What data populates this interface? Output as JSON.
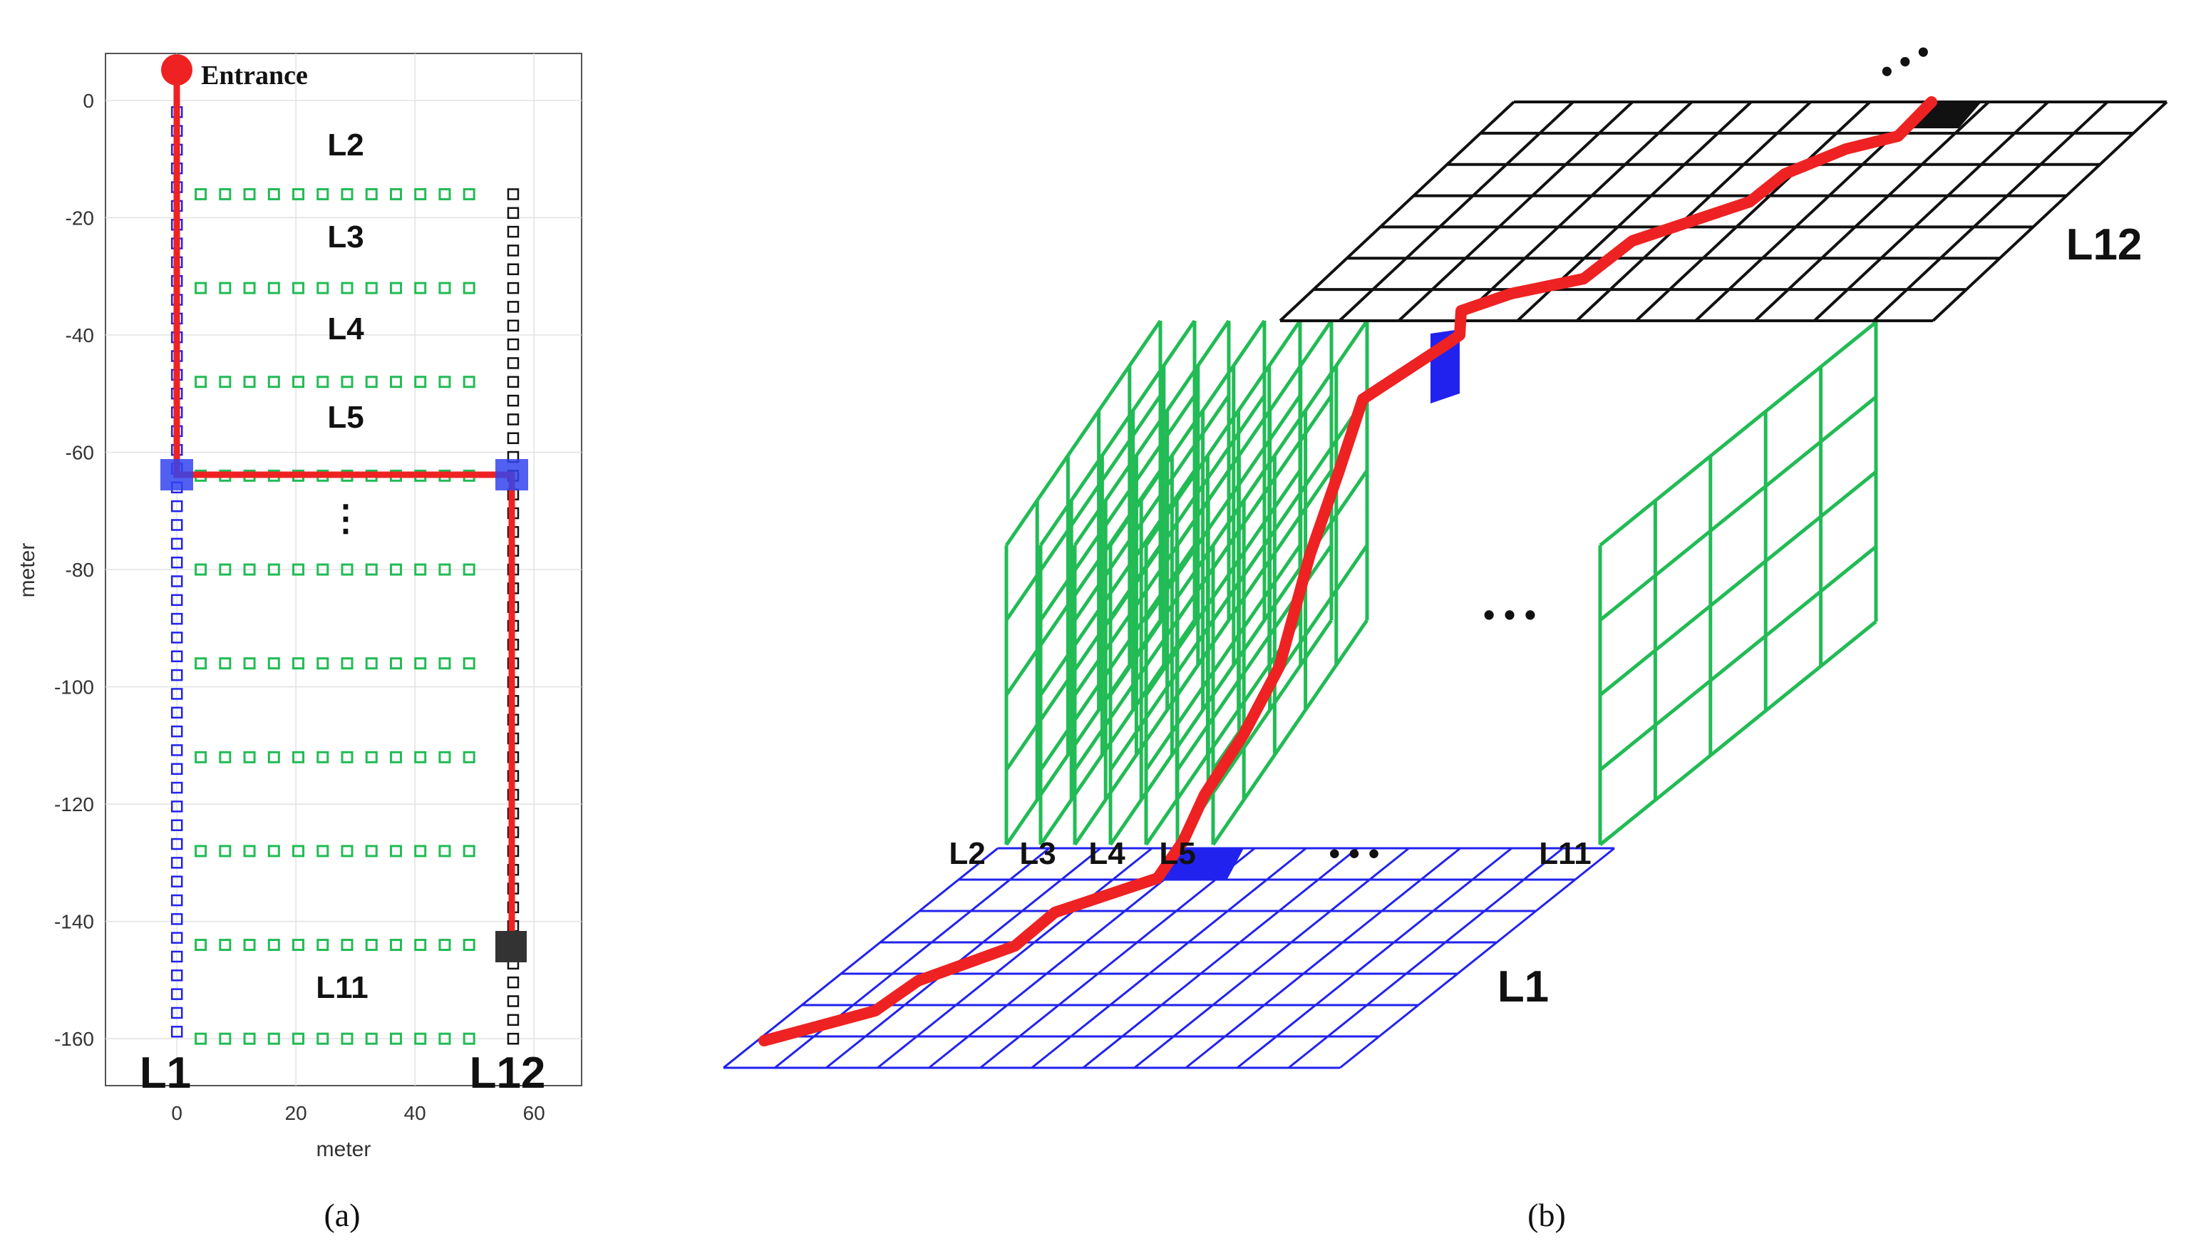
{
  "panel_a": {
    "entrance_label": "Entrance",
    "xlabel": "meter",
    "ylabel": "meter",
    "x_ticks": [
      "0",
      "20",
      "40",
      "60"
    ],
    "y_ticks": [
      "0",
      "-20",
      "-40",
      "-60",
      "-80",
      "-100",
      "-120",
      "-140",
      "-160"
    ],
    "xlim": [
      -12,
      68
    ],
    "ylim": [
      -168,
      8
    ],
    "aisle_labels": [
      "L2",
      "L3",
      "L4",
      "L5",
      "⋮",
      "L11"
    ],
    "left_corridor_label": "L1",
    "right_corridor_label": "L12",
    "caption": "(a)"
  },
  "panel_b": {
    "top_plane_label": "L12",
    "bottom_plane_label": "L1",
    "ellipsis": "• • •",
    "front_edge_labels": [
      "L2",
      "L3",
      "L4",
      "L5",
      "• • •",
      "L11"
    ],
    "caption": "(b)"
  },
  "colors": {
    "path": "#ee2222",
    "corridor_l1": "#2222ee",
    "aisles": "#22bb55",
    "corridor_l12": "#111111",
    "turn_marker": "#3344ee",
    "goal_marker": "#333333"
  }
}
